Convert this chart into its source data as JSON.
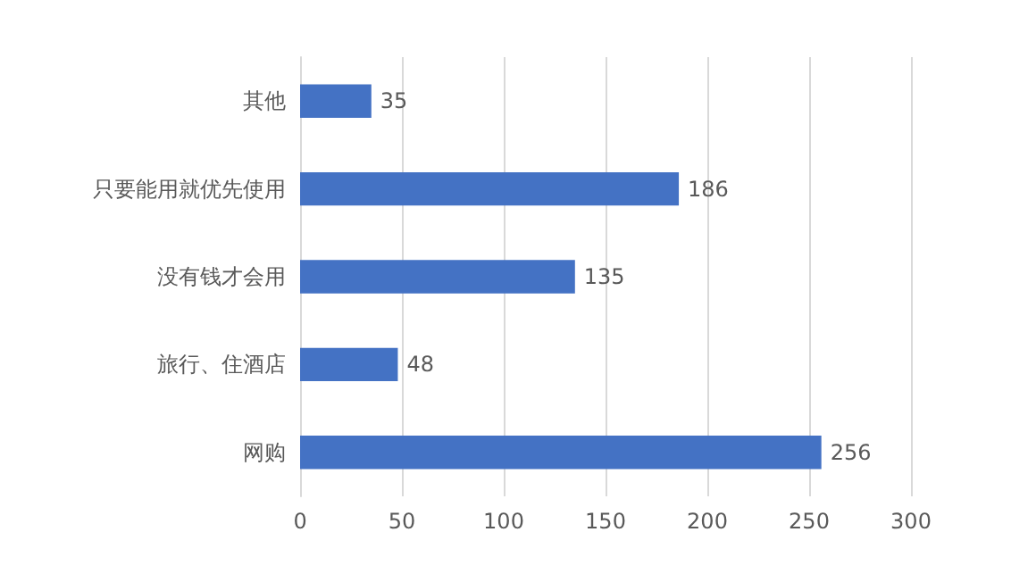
{
  "chart_data": {
    "type": "bar",
    "orientation": "horizontal",
    "categories": [
      "其他",
      "只要能用就优先使用",
      "没有钱才会用",
      "旅行、住酒店",
      "网购"
    ],
    "values": [
      35,
      186,
      135,
      48,
      256
    ],
    "color": "#4472c4",
    "xlim": [
      0,
      300
    ],
    "xticks": [
      0,
      50,
      100,
      150,
      200,
      250,
      300
    ],
    "grid": "x",
    "data_labels": true
  }
}
